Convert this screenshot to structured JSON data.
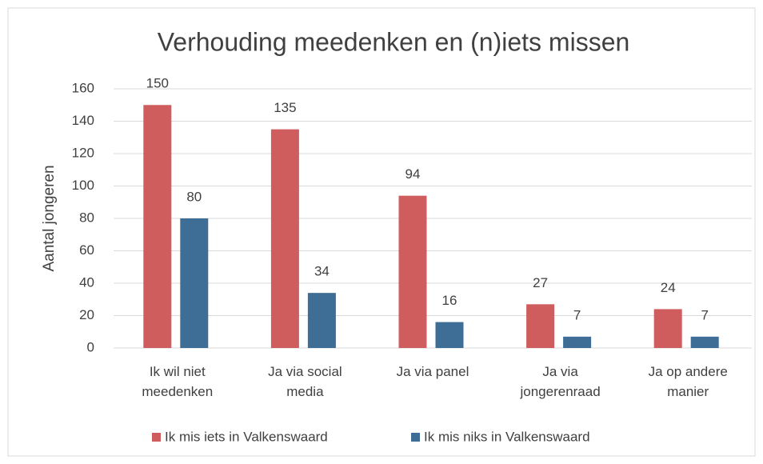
{
  "chart_data": {
    "type": "bar",
    "title": "Verhouding meedenken en (n)iets missen",
    "ylabel": "Aantal jongeren",
    "categories": [
      "Ik wil niet meedenken",
      "Ja via social media",
      "Ja via panel",
      "Ja via jongerenraad",
      "Ja op andere manier"
    ],
    "series": [
      {
        "name": "Ik mis iets in Valkenswaard",
        "color": "#cf5d5d",
        "values": [
          150,
          135,
          94,
          27,
          24
        ]
      },
      {
        "name": "Ik mis niks in Valkenswaard",
        "color": "#3e6e96",
        "values": [
          80,
          34,
          16,
          7,
          7
        ]
      }
    ],
    "ylim": [
      0,
      160
    ],
    "yticks": [
      0,
      20,
      40,
      60,
      80,
      100,
      120,
      140,
      160
    ],
    "grid": true,
    "legend": "bottom"
  }
}
